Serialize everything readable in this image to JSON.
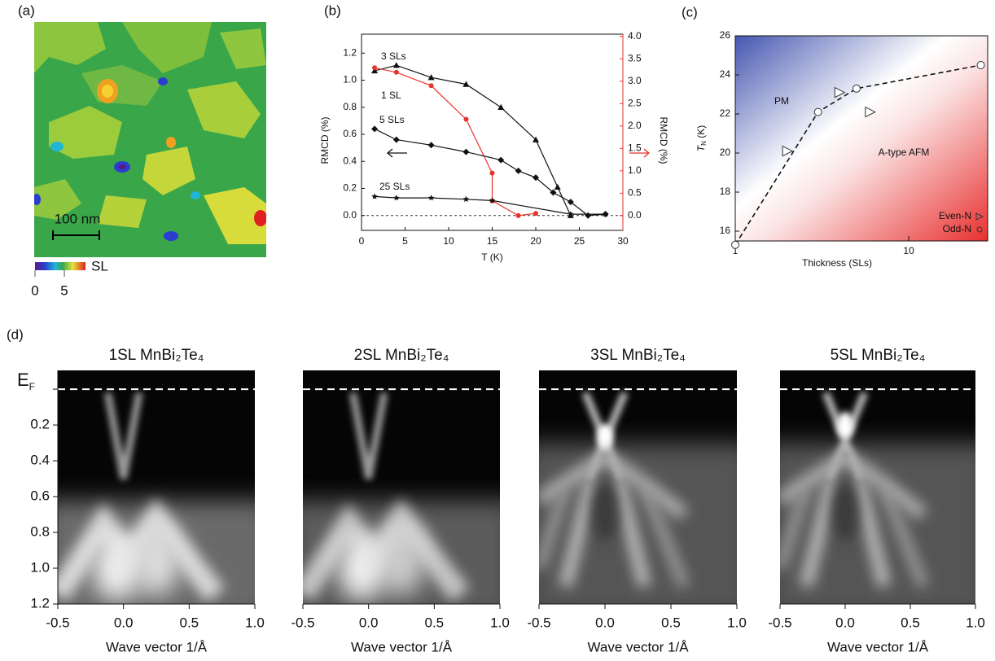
{
  "chart_data": [
    {
      "type": "image",
      "panel_label": "(a)",
      "scale_bar": "100 nm",
      "colorbar_label": "SL",
      "clim": [
        0,
        8.6
      ],
      "colorbar_ticks": [
        0,
        5
      ]
    },
    {
      "type": "scatter",
      "panel_label": "(b)",
      "xlabel": "T (K)",
      "ylabel": "RMCD (%)",
      "y2label": "RMCD (%)",
      "xlim": [
        0,
        30
      ],
      "xticks": [
        0,
        5,
        10,
        15,
        20,
        25,
        30
      ],
      "ylim": [
        -0.11,
        1.34
      ],
      "yticks": [
        {
          "value": 0,
          "label": "0.0"
        },
        0.2,
        0.4,
        0.6,
        0.8,
        {
          "value": 1,
          "label": "1.0"
        },
        1.2
      ],
      "y2lim": [
        -0.33,
        4.05
      ],
      "y2ticks": [
        {
          "value": 0,
          "label": "0.0"
        },
        0.5,
        {
          "value": 1,
          "label": "1.0"
        },
        1.5,
        {
          "value": 2,
          "label": "2.0"
        },
        2.5,
        {
          "value": 3,
          "label": "3.0"
        },
        3.5,
        {
          "value": 4,
          "label": "4.0"
        }
      ],
      "y2color": "#e8322b",
      "series": [
        {
          "name": "3 SLs",
          "color": "#111111",
          "marker": "triangle",
          "x": [
            1.5,
            4,
            8,
            12,
            16,
            20,
            22.5,
            24
          ],
          "values": [
            1.07,
            1.11,
            1.02,
            0.97,
            0.8,
            0.56,
            0.21,
            0.0
          ]
        },
        {
          "name": "1 SL",
          "color": "#e8322b",
          "marker": "circle",
          "axis": "y2",
          "x": [
            1.5,
            4,
            8,
            12,
            15,
            15,
            18,
            20
          ],
          "values": [
            3.3,
            3.2,
            2.9,
            2.15,
            0.95,
            0.33,
            0.0,
            0.05
          ]
        },
        {
          "name": "5 SLs",
          "color": "#111111",
          "marker": "diamond",
          "x": [
            1.5,
            4,
            8,
            12,
            16,
            18,
            20,
            22,
            24,
            26,
            28
          ],
          "values": [
            0.64,
            0.56,
            0.52,
            0.47,
            0.41,
            0.33,
            0.28,
            0.17,
            0.1,
            0.0,
            0.01
          ]
        },
        {
          "name": "25 SLs",
          "color": "#111111",
          "marker": "star",
          "x": [
            1.5,
            4,
            8,
            12,
            15,
            24,
            28
          ],
          "values": [
            0.14,
            0.13,
            0.13,
            0.12,
            0.11,
            0.01,
            0.01
          ]
        }
      ]
    },
    {
      "type": "scatter",
      "panel_label": "(c)",
      "xlabel": "Thickness (SLs)",
      "ylabel": [
        "T",
        "N",
        " (K)"
      ],
      "log_x": true,
      "xlim": [
        1,
        28.5
      ],
      "xticks": [
        1,
        10
      ],
      "ylim": [
        15.5,
        26
      ],
      "yticks": [
        16,
        18,
        20,
        22,
        24,
        26
      ],
      "annotations": [
        "PM",
        "A-type AFM"
      ],
      "legend": "lower right",
      "series": [
        {
          "name": "Even-N",
          "color": "#333333",
          "marker": "triangle-right",
          "x": [
            2,
            4,
            6
          ],
          "values": [
            20.1,
            23.1,
            22.1
          ]
        },
        {
          "name": "Odd-N",
          "color": "#333333",
          "marker": "circle",
          "x": [
            1,
            3,
            5,
            26
          ],
          "values": [
            15.3,
            22.1,
            23.3,
            24.5
          ]
        }
      ]
    },
    {
      "type": "arpes",
      "panel_label": "(d)",
      "title": "1SL MnBi₂Te₄",
      "xlabel": "Wave vector 1/Å",
      "xlim": [
        -0.5,
        1.0
      ],
      "xticks": [
        -0.5,
        {
          "value": 0,
          "label": "0.0"
        },
        0.5,
        {
          "value": 1,
          "label": "1.0"
        }
      ],
      "ylim": [
        -0.105,
        1.2
      ],
      "yticks": [
        {
          "value": 0,
          "label": "E",
          "subscript": "F"
        },
        0.2,
        0.4,
        0.6,
        0.8,
        {
          "value": 1,
          "label": "1.0"
        },
        1.2
      ]
    },
    {
      "type": "arpes",
      "title": "2SL MnBi₂Te₄",
      "xlabel": "Wave vector 1/Å",
      "xlim": [
        -0.5,
        1.0
      ],
      "xticks": [
        -0.5,
        {
          "value": 0,
          "label": "0.0"
        },
        0.5,
        {
          "value": 1,
          "label": "1.0"
        }
      ],
      "ylim": [
        -0.105,
        1.2
      ]
    },
    {
      "type": "arpes",
      "title": "3SL MnBi₂Te₄",
      "xlabel": "Wave vector 1/Å",
      "xlim": [
        -0.5,
        1.0
      ],
      "xticks": [
        -0.5,
        {
          "value": 0,
          "label": "0.0"
        },
        0.5,
        {
          "value": 1,
          "label": "1.0"
        }
      ],
      "ylim": [
        -0.105,
        1.2
      ]
    },
    {
      "type": "arpes",
      "title": "5SL MnBi₂Te₄",
      "xlabel": "Wave vector 1/Å",
      "xlim": [
        -0.5,
        1.0
      ],
      "xticks": [
        -0.5,
        {
          "value": 0,
          "label": "0.0"
        },
        0.5,
        {
          "value": 1,
          "label": "1.0"
        }
      ],
      "ylim": [
        -0.105,
        1.2
      ]
    }
  ]
}
